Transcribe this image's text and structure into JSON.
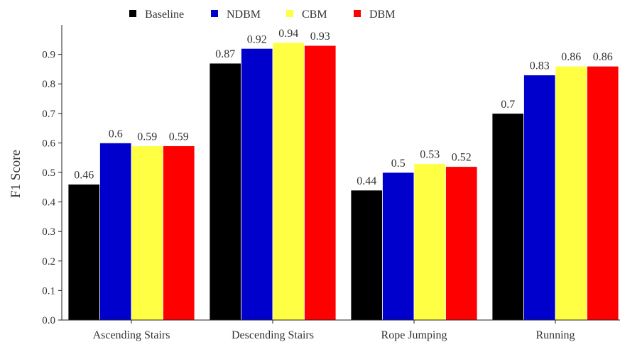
{
  "chart_data": {
    "type": "bar",
    "title": "",
    "xlabel": "",
    "ylabel": "F1 Score",
    "ylim": [
      0,
      1.0
    ],
    "yticks": [
      "0.0",
      "0.1",
      "0.2",
      "0.3",
      "0.4",
      "0.5",
      "0.6",
      "0.7",
      "0.8",
      "0.9"
    ],
    "grid": false,
    "legend_position": "top",
    "categories": [
      "Ascending Stairs",
      "Descending Stairs",
      "Rope Jumping",
      "Running"
    ],
    "series": [
      {
        "name": "Baseline",
        "color": "#000000",
        "values": [
          0.46,
          0.87,
          0.44,
          0.7
        ],
        "labels": [
          "0.46",
          "0.87",
          "0.44",
          "0.7"
        ]
      },
      {
        "name": "NDBM",
        "color": "#0000cc",
        "values": [
          0.6,
          0.92,
          0.5,
          0.83
        ],
        "labels": [
          "0.6",
          "0.92",
          "0.5",
          "0.83"
        ]
      },
      {
        "name": "CBM",
        "color": "#ffff44",
        "values": [
          0.59,
          0.94,
          0.53,
          0.86
        ],
        "labels": [
          "0.59",
          "0.94",
          "0.53",
          "0.86"
        ]
      },
      {
        "name": "DBM",
        "color": "#ff0000",
        "values": [
          0.59,
          0.93,
          0.52,
          0.86
        ],
        "labels": [
          "0.59",
          "0.93",
          "0.52",
          "0.86"
        ]
      }
    ]
  }
}
